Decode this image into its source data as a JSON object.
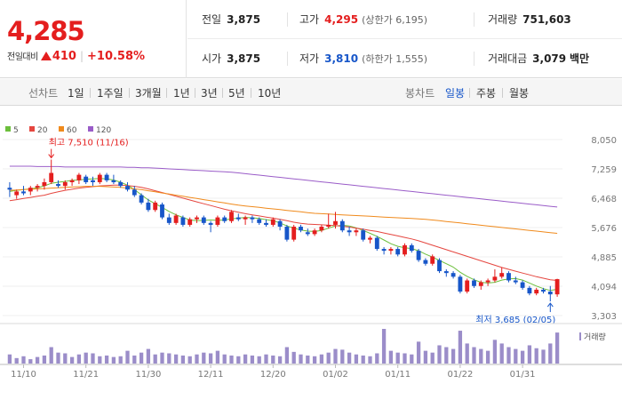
{
  "quote": {
    "price": "4,285",
    "change_label": "전일대비",
    "change_amount": "410",
    "change_pct": "+10.58%",
    "prev_close_label": "전일",
    "prev_close": "3,875",
    "high_label": "고가",
    "high": "4,295",
    "upper_limit_label": "(상한가",
    "upper_limit": "6,195)",
    "volume_label": "거래량",
    "volume": "751,603",
    "open_label": "시가",
    "open": "3,875",
    "low_label": "저가",
    "low": "3,810",
    "lower_limit_label": "(하한가",
    "lower_limit": "1,555)",
    "amount_label": "거래대금",
    "amount": "3,079",
    "amount_unit": "백만"
  },
  "tabs": {
    "line_chart": "선차트",
    "periods": [
      "1일",
      "1주일",
      "3개월",
      "1년",
      "3년",
      "5년",
      "10년"
    ],
    "candle_chart": "봉차트",
    "candles": [
      "일봉",
      "주봉",
      "월봉"
    ],
    "active_candle": "일봉"
  },
  "colors": {
    "up": "#e41e1e",
    "down": "#1756c9",
    "ma5": "#6cbf3c",
    "ma20": "#e5463f",
    "ma60": "#f08a1c",
    "ma120": "#9a5cc8",
    "volume": "#9b8dc9"
  },
  "chart_data": {
    "type": "candlestick",
    "legend": [
      "5",
      "20",
      "60",
      "120"
    ],
    "y_ticks": [
      "8,050",
      "7,259",
      "6,468",
      "5,676",
      "4,885",
      "4,094",
      "3,303"
    ],
    "ylim": [
      3303,
      8050
    ],
    "x_ticks": [
      "11/10",
      "11/21",
      "11/30",
      "12/11",
      "12/20",
      "01/02",
      "01/11",
      "01/22",
      "01/31"
    ],
    "x_tick_index": [
      2,
      11,
      20,
      29,
      38,
      47,
      56,
      65,
      74
    ],
    "high_annotation": "최고 7,510 (11/16)",
    "high_index": 6,
    "low_annotation": "최저 3,685 (02/05)",
    "low_index": 78,
    "volume_label": "거래량",
    "candles": [
      [
        6750,
        6900,
        6500,
        6700
      ],
      [
        6550,
        6700,
        6450,
        6650
      ],
      [
        6650,
        6800,
        6550,
        6600
      ],
      [
        6650,
        6800,
        6550,
        6750
      ],
      [
        6750,
        6850,
        6650,
        6800
      ],
      [
        6800,
        7000,
        6700,
        6900
      ],
      [
        6900,
        7510,
        6850,
        7150
      ],
      [
        6850,
        6950,
        6750,
        6800
      ],
      [
        6800,
        6950,
        6700,
        6900
      ],
      [
        6900,
        7000,
        6800,
        6950
      ],
      [
        6950,
        7150,
        6850,
        7100
      ],
      [
        7050,
        7100,
        6850,
        6900
      ],
      [
        6950,
        7050,
        6800,
        6900
      ],
      [
        6900,
        7150,
        6850,
        7100
      ],
      [
        7100,
        7150,
        6900,
        6950
      ],
      [
        6950,
        7100,
        6850,
        6900
      ],
      [
        6900,
        6950,
        6750,
        6800
      ],
      [
        6800,
        6900,
        6650,
        6700
      ],
      [
        6700,
        6800,
        6500,
        6550
      ],
      [
        6550,
        6600,
        6300,
        6350
      ],
      [
        6350,
        6450,
        6100,
        6150
      ],
      [
        6150,
        6400,
        6100,
        6350
      ],
      [
        6300,
        6350,
        5900,
        5950
      ],
      [
        5950,
        6050,
        5750,
        5800
      ],
      [
        5800,
        6050,
        5750,
        6000
      ],
      [
        5950,
        6000,
        5700,
        5750
      ],
      [
        5750,
        5950,
        5700,
        5900
      ],
      [
        5900,
        6000,
        5800,
        5950
      ],
      [
        5950,
        6000,
        5750,
        5800
      ],
      [
        5800,
        5850,
        5550,
        5750
      ],
      [
        5750,
        6000,
        5700,
        5950
      ],
      [
        5950,
        6000,
        5800,
        5850
      ],
      [
        5850,
        6150,
        5800,
        6100
      ],
      [
        5950,
        6050,
        5850,
        5900
      ],
      [
        5900,
        6000,
        5750,
        5950
      ],
      [
        5950,
        6000,
        5800,
        5900
      ],
      [
        5900,
        5950,
        5750,
        5800
      ],
      [
        5800,
        5900,
        5700,
        5750
      ],
      [
        5750,
        5950,
        5700,
        5900
      ],
      [
        5850,
        5900,
        5600,
        5700
      ],
      [
        5700,
        5750,
        5300,
        5350
      ],
      [
        5350,
        5750,
        5300,
        5700
      ],
      [
        5700,
        5750,
        5550,
        5600
      ],
      [
        5550,
        5650,
        5450,
        5500
      ],
      [
        5500,
        5650,
        5450,
        5600
      ],
      [
        5600,
        5750,
        5550,
        5700
      ],
      [
        5700,
        6050,
        5650,
        5750
      ],
      [
        5750,
        6100,
        5650,
        5850
      ],
      [
        5850,
        5900,
        5550,
        5600
      ],
      [
        5600,
        5700,
        5450,
        5550
      ],
      [
        5550,
        5650,
        5450,
        5600
      ],
      [
        5600,
        5650,
        5300,
        5350
      ],
      [
        5350,
        5450,
        5250,
        5400
      ],
      [
        5400,
        5450,
        5050,
        5100
      ],
      [
        5100,
        5150,
        4950,
        5050
      ],
      [
        5050,
        5150,
        4950,
        5100
      ],
      [
        5100,
        5150,
        4900,
        4950
      ],
      [
        4950,
        5250,
        4900,
        5200
      ],
      [
        5200,
        5250,
        5000,
        5050
      ],
      [
        5050,
        5100,
        4750,
        4800
      ],
      [
        4800,
        4850,
        4650,
        4700
      ],
      [
        4700,
        4950,
        4650,
        4900
      ],
      [
        4800,
        4850,
        4450,
        4500
      ],
      [
        4500,
        4550,
        4350,
        4450
      ],
      [
        4450,
        4500,
        4300,
        4350
      ],
      [
        4350,
        4400,
        3900,
        3950
      ],
      [
        3950,
        4300,
        3900,
        4250
      ],
      [
        4250,
        4300,
        4050,
        4100
      ],
      [
        4100,
        4250,
        4000,
        4200
      ],
      [
        4200,
        4300,
        4100,
        4250
      ],
      [
        4250,
        4550,
        4200,
        4350
      ],
      [
        4350,
        4600,
        4300,
        4450
      ],
      [
        4450,
        4500,
        4200,
        4250
      ],
      [
        4250,
        4350,
        4150,
        4200
      ],
      [
        4200,
        4250,
        4000,
        4050
      ],
      [
        4050,
        4100,
        3850,
        3900
      ],
      [
        3900,
        4050,
        3850,
        4000
      ],
      [
        4000,
        4050,
        3900,
        3950
      ],
      [
        3950,
        4100,
        3685,
        3875
      ],
      [
        3875,
        4295,
        3810,
        4285
      ]
    ],
    "volumes": [
      25,
      15,
      20,
      12,
      18,
      22,
      45,
      30,
      28,
      18,
      25,
      30,
      28,
      20,
      22,
      18,
      20,
      35,
      22,
      30,
      40,
      25,
      30,
      28,
      25,
      22,
      20,
      25,
      30,
      28,
      35,
      25,
      22,
      20,
      25,
      22,
      20,
      25,
      22,
      20,
      45,
      32,
      25,
      22,
      20,
      25,
      30,
      40,
      38,
      30,
      25,
      22,
      20,
      28,
      95,
      35,
      30,
      28,
      25,
      60,
      35,
      30,
      50,
      45,
      40,
      90,
      55,
      45,
      40,
      35,
      65,
      55,
      45,
      40,
      35,
      50,
      42,
      38,
      55,
      85
    ],
    "ma": {
      "5": [
        6650,
        6680,
        6700,
        6720,
        6750,
        6800,
        6870,
        6900,
        6920,
        6950,
        6960,
        6980,
        6990,
        7000,
        6990,
        6960,
        6900,
        6820,
        6700,
        6560,
        6420,
        6320,
        6220,
        6110,
        6020,
        5950,
        5880,
        5860,
        5870,
        5880,
        5870,
        5880,
        5910,
        5930,
        5950,
        5940,
        5920,
        5890,
        5860,
        5800,
        5720,
        5660,
        5610,
        5580,
        5570,
        5600,
        5660,
        5720,
        5740,
        5720,
        5670,
        5600,
        5520,
        5440,
        5340,
        5240,
        5170,
        5130,
        5110,
        5050,
        4960,
        4880,
        4790,
        4700,
        4610,
        4470,
        4360,
        4270,
        4200,
        4180,
        4200,
        4260,
        4290,
        4300,
        4260,
        4180,
        4100,
        4030,
        3980,
        4010
      ],
      "20": [
        6400,
        6430,
        6460,
        6490,
        6520,
        6550,
        6600,
        6640,
        6680,
        6710,
        6740,
        6760,
        6780,
        6800,
        6810,
        6820,
        6820,
        6810,
        6790,
        6760,
        6720,
        6670,
        6620,
        6570,
        6520,
        6470,
        6420,
        6370,
        6320,
        6270,
        6220,
        6170,
        6130,
        6090,
        6050,
        6020,
        5990,
        5960,
        5930,
        5900,
        5860,
        5820,
        5790,
        5770,
        5760,
        5750,
        5740,
        5730,
        5710,
        5690,
        5660,
        5630,
        5600,
        5570,
        5530,
        5490,
        5450,
        5410,
        5370,
        5320,
        5260,
        5200,
        5140,
        5080,
        5020,
        4960,
        4900,
        4840,
        4780,
        4720,
        4660,
        4600,
        4550,
        4500,
        4450,
        4400,
        4350,
        4310,
        4270,
        4250
      ],
      "60": [
        6680,
        6690,
        6700,
        6710,
        6720,
        6730,
        6740,
        6750,
        6760,
        6770,
        6780,
        6790,
        6790,
        6790,
        6780,
        6770,
        6760,
        6740,
        6720,
        6700,
        6670,
        6640,
        6610,
        6580,
        6550,
        6520,
        6490,
        6460,
        6430,
        6400,
        6370,
        6340,
        6310,
        6280,
        6260,
        6240,
        6220,
        6200,
        6180,
        6160,
        6140,
        6120,
        6100,
        6080,
        6060,
        6050,
        6040,
        6030,
        6020,
        6010,
        6000,
        5990,
        5980,
        5970,
        5960,
        5950,
        5940,
        5930,
        5920,
        5910,
        5900,
        5880,
        5860,
        5840,
        5820,
        5800,
        5780,
        5760,
        5740,
        5720,
        5700,
        5680,
        5660,
        5640,
        5620,
        5600,
        5580,
        5560,
        5540,
        5520
      ],
      "120": [
        7330,
        7330,
        7330,
        7330,
        7320,
        7320,
        7320,
        7320,
        7310,
        7310,
        7310,
        7310,
        7310,
        7310,
        7310,
        7310,
        7310,
        7300,
        7300,
        7290,
        7290,
        7280,
        7270,
        7260,
        7250,
        7240,
        7230,
        7220,
        7210,
        7200,
        7190,
        7180,
        7170,
        7150,
        7130,
        7110,
        7090,
        7070,
        7050,
        7030,
        7010,
        6990,
        6970,
        6950,
        6930,
        6910,
        6890,
        6870,
        6850,
        6830,
        6810,
        6790,
        6770,
        6750,
        6730,
        6710,
        6690,
        6670,
        6650,
        6630,
        6610,
        6590,
        6570,
        6550,
        6530,
        6510,
        6490,
        6470,
        6450,
        6430,
        6410,
        6390,
        6370,
        6350,
        6330,
        6310,
        6290,
        6270,
        6250,
        6230
      ]
    }
  }
}
